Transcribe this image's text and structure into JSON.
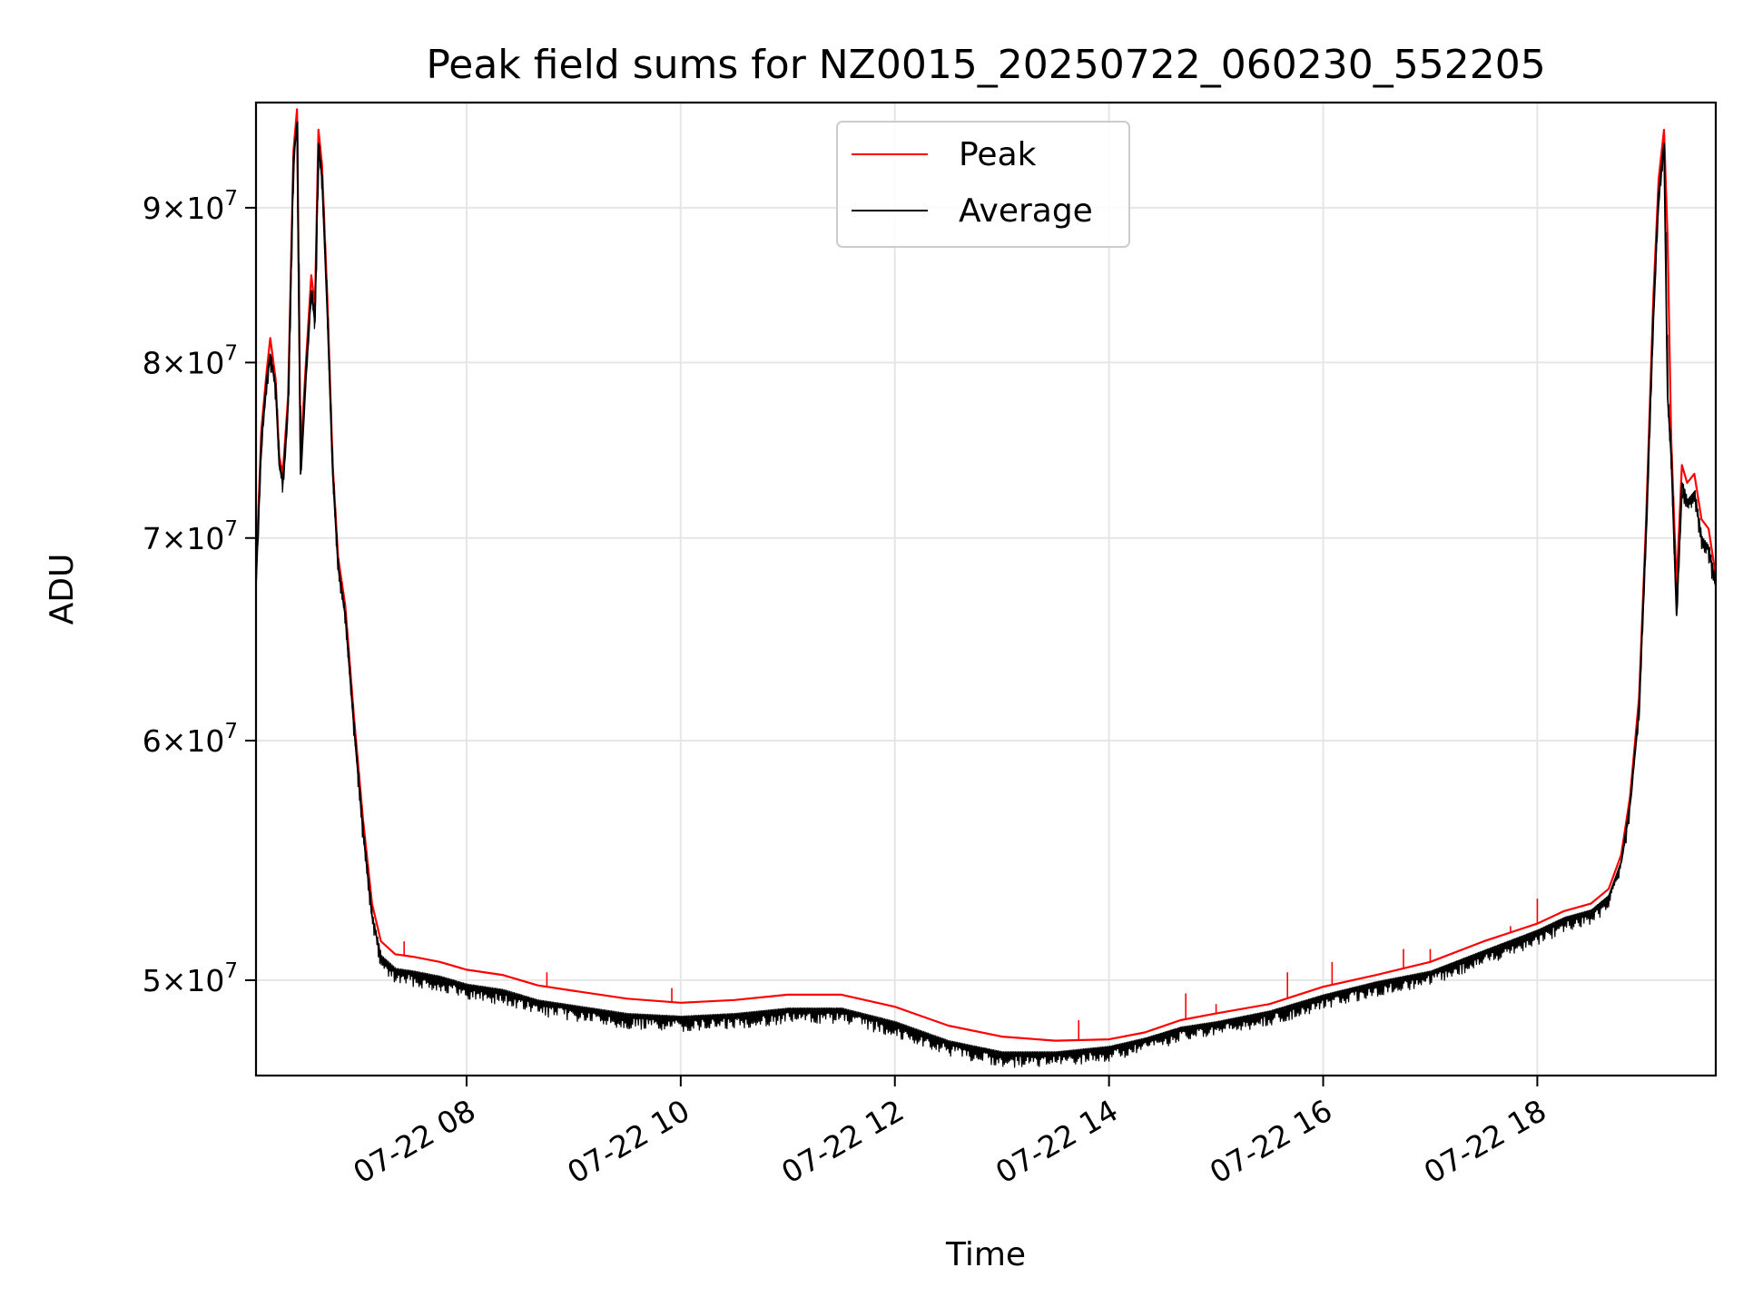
{
  "chart_data": {
    "type": "line",
    "title": "Peak field sums for NZ0015_20250722_060230_552205",
    "xlabel": "Time",
    "ylabel": "ADU",
    "yscale": "log",
    "grid": true,
    "legend_position": "upper-center",
    "xlim": [
      "2025-07-22 06:02",
      "2025-07-22 19:40"
    ],
    "ylim": [
      46500000,
      97500000
    ],
    "x_ticks": [
      {
        "value": "2025-07-22 08:00",
        "label": "07-22 08"
      },
      {
        "value": "2025-07-22 10:00",
        "label": "07-22 10"
      },
      {
        "value": "2025-07-22 12:00",
        "label": "07-22 12"
      },
      {
        "value": "2025-07-22 14:00",
        "label": "07-22 14"
      },
      {
        "value": "2025-07-22 16:00",
        "label": "07-22 16"
      },
      {
        "value": "2025-07-22 18:00",
        "label": "07-22 18"
      }
    ],
    "y_ticks": [
      {
        "value": 50000000,
        "label": "5×10⁷",
        "mantissa": "5",
        "exponent": "7"
      },
      {
        "value": 60000000,
        "label": "6×10⁷",
        "mantissa": "6",
        "exponent": "7"
      },
      {
        "value": 70000000,
        "label": "7×10⁷",
        "mantissa": "7",
        "exponent": "7"
      },
      {
        "value": 80000000,
        "label": "8×10⁷",
        "mantissa": "8",
        "exponent": "7"
      },
      {
        "value": 90000000,
        "label": "9×10⁷",
        "mantissa": "9",
        "exponent": "7"
      }
    ],
    "series": [
      {
        "name": "Peak",
        "color": "#ff0000",
        "points": [
          [
            "2025-07-22 06:02",
            68000000
          ],
          [
            "2025-07-22 06:05",
            76000000
          ],
          [
            "2025-07-22 06:08",
            79500000
          ],
          [
            "2025-07-22 06:10",
            81500000
          ],
          [
            "2025-07-22 06:13",
            79000000
          ],
          [
            "2025-07-22 06:15",
            74500000
          ],
          [
            "2025-07-22 06:17",
            73500000
          ],
          [
            "2025-07-22 06:20",
            78000000
          ],
          [
            "2025-07-22 06:23",
            94000000
          ],
          [
            "2025-07-22 06:25",
            97000000
          ],
          [
            "2025-07-22 06:27",
            74500000
          ],
          [
            "2025-07-22 06:30",
            80000000
          ],
          [
            "2025-07-22 06:33",
            85500000
          ],
          [
            "2025-07-22 06:35",
            83500000
          ],
          [
            "2025-07-22 06:37",
            95500000
          ],
          [
            "2025-07-22 06:39",
            93000000
          ],
          [
            "2025-07-22 06:42",
            84000000
          ],
          [
            "2025-07-22 06:45",
            74000000
          ],
          [
            "2025-07-22 06:48",
            69000000
          ],
          [
            "2025-07-22 06:52",
            66500000
          ],
          [
            "2025-07-22 06:57",
            61000000
          ],
          [
            "2025-07-22 07:02",
            56500000
          ],
          [
            "2025-07-22 07:07",
            53000000
          ],
          [
            "2025-07-22 07:12",
            51500000
          ],
          [
            "2025-07-22 07:20",
            51000000
          ],
          [
            "2025-07-22 07:30",
            50900000
          ],
          [
            "2025-07-22 07:45",
            50700000
          ],
          [
            "2025-07-22 08:00",
            50400000
          ],
          [
            "2025-07-22 08:20",
            50200000
          ],
          [
            "2025-07-22 08:40",
            49800000
          ],
          [
            "2025-07-22 09:00",
            49600000
          ],
          [
            "2025-07-22 09:30",
            49300000
          ],
          [
            "2025-07-22 10:00",
            49150000
          ],
          [
            "2025-07-22 10:30",
            49250000
          ],
          [
            "2025-07-22 11:00",
            49450000
          ],
          [
            "2025-07-22 11:30",
            49450000
          ],
          [
            "2025-07-22 12:00",
            49000000
          ],
          [
            "2025-07-22 12:30",
            48300000
          ],
          [
            "2025-07-22 13:00",
            47900000
          ],
          [
            "2025-07-22 13:30",
            47750000
          ],
          [
            "2025-07-22 14:00",
            47800000
          ],
          [
            "2025-07-22 14:20",
            48050000
          ],
          [
            "2025-07-22 14:40",
            48500000
          ],
          [
            "2025-07-22 15:00",
            48750000
          ],
          [
            "2025-07-22 15:30",
            49100000
          ],
          [
            "2025-07-22 16:00",
            49750000
          ],
          [
            "2025-07-22 16:30",
            50200000
          ],
          [
            "2025-07-22 17:00",
            50700000
          ],
          [
            "2025-07-22 17:30",
            51500000
          ],
          [
            "2025-07-22 18:00",
            52200000
          ],
          [
            "2025-07-22 18:15",
            52700000
          ],
          [
            "2025-07-22 18:30",
            53000000
          ],
          [
            "2025-07-22 18:40",
            53600000
          ],
          [
            "2025-07-22 18:47",
            55000000
          ],
          [
            "2025-07-22 18:52",
            57500000
          ],
          [
            "2025-07-22 18:57",
            62000000
          ],
          [
            "2025-07-22 19:01",
            71000000
          ],
          [
            "2025-07-22 19:05",
            84000000
          ],
          [
            "2025-07-22 19:08",
            92000000
          ],
          [
            "2025-07-22 19:11",
            95500000
          ],
          [
            "2025-07-22 19:13",
            88000000
          ],
          [
            "2025-07-22 19:15",
            75500000
          ],
          [
            "2025-07-22 19:18",
            67500000
          ],
          [
            "2025-07-22 19:21",
            74000000
          ],
          [
            "2025-07-22 19:24",
            73000000
          ],
          [
            "2025-07-22 19:28",
            73500000
          ],
          [
            "2025-07-22 19:32",
            71000000
          ],
          [
            "2025-07-22 19:36",
            70500000
          ],
          [
            "2025-07-22 19:40",
            68000000
          ]
        ],
        "spikes": [
          [
            "2025-07-22 07:25",
            51500000
          ],
          [
            "2025-07-22 08:45",
            50300000
          ],
          [
            "2025-07-22 09:55",
            49700000
          ],
          [
            "2025-07-22 13:43",
            48500000
          ],
          [
            "2025-07-22 14:43",
            49500000
          ],
          [
            "2025-07-22 15:00",
            49100000
          ],
          [
            "2025-07-22 15:40",
            50300000
          ],
          [
            "2025-07-22 16:05",
            50700000
          ],
          [
            "2025-07-22 16:45",
            51200000
          ],
          [
            "2025-07-22 17:00",
            51200000
          ],
          [
            "2025-07-22 17:45",
            52100000
          ],
          [
            "2025-07-22 18:00",
            53200000
          ]
        ]
      },
      {
        "name": "Average",
        "color": "#000000",
        "points": [
          [
            "2025-07-22 06:02",
            67500000
          ],
          [
            "2025-07-22 06:05",
            75500000
          ],
          [
            "2025-07-22 06:08",
            79000000
          ],
          [
            "2025-07-22 06:10",
            80500000
          ],
          [
            "2025-07-22 06:13",
            78500000
          ],
          [
            "2025-07-22 06:15",
            74000000
          ],
          [
            "2025-07-22 06:17",
            73000000
          ],
          [
            "2025-07-22 06:20",
            77500000
          ],
          [
            "2025-07-22 06:23",
            93500000
          ],
          [
            "2025-07-22 06:25",
            96000000
          ],
          [
            "2025-07-22 06:27",
            73500000
          ],
          [
            "2025-07-22 06:30",
            79500000
          ],
          [
            "2025-07-22 06:33",
            84500000
          ],
          [
            "2025-07-22 06:35",
            82500000
          ],
          [
            "2025-07-22 06:37",
            94500000
          ],
          [
            "2025-07-22 06:39",
            92000000
          ],
          [
            "2025-07-22 06:42",
            83000000
          ],
          [
            "2025-07-22 06:45",
            73500000
          ],
          [
            "2025-07-22 06:48",
            68500000
          ],
          [
            "2025-07-22 06:52",
            66000000
          ],
          [
            "2025-07-22 06:57",
            60500000
          ],
          [
            "2025-07-22 07:02",
            56000000
          ],
          [
            "2025-07-22 07:07",
            52500000
          ],
          [
            "2025-07-22 07:12",
            50900000
          ],
          [
            "2025-07-22 07:20",
            50400000
          ],
          [
            "2025-07-22 07:30",
            50300000
          ],
          [
            "2025-07-22 07:45",
            50100000
          ],
          [
            "2025-07-22 08:00",
            49800000
          ],
          [
            "2025-07-22 08:20",
            49600000
          ],
          [
            "2025-07-22 08:40",
            49200000
          ],
          [
            "2025-07-22 09:00",
            49000000
          ],
          [
            "2025-07-22 09:30",
            48700000
          ],
          [
            "2025-07-22 10:00",
            48600000
          ],
          [
            "2025-07-22 10:30",
            48700000
          ],
          [
            "2025-07-22 11:00",
            48900000
          ],
          [
            "2025-07-22 11:30",
            48900000
          ],
          [
            "2025-07-22 12:00",
            48400000
          ],
          [
            "2025-07-22 12:30",
            47700000
          ],
          [
            "2025-07-22 13:00",
            47300000
          ],
          [
            "2025-07-22 13:30",
            47300000
          ],
          [
            "2025-07-22 14:00",
            47500000
          ],
          [
            "2025-07-22 14:20",
            47800000
          ],
          [
            "2025-07-22 14:40",
            48200000
          ],
          [
            "2025-07-22 15:00",
            48400000
          ],
          [
            "2025-07-22 15:30",
            48800000
          ],
          [
            "2025-07-22 16:00",
            49400000
          ],
          [
            "2025-07-22 16:30",
            49900000
          ],
          [
            "2025-07-22 17:00",
            50300000
          ],
          [
            "2025-07-22 17:30",
            51100000
          ],
          [
            "2025-07-22 18:00",
            51900000
          ],
          [
            "2025-07-22 18:15",
            52400000
          ],
          [
            "2025-07-22 18:30",
            52700000
          ],
          [
            "2025-07-22 18:40",
            53300000
          ],
          [
            "2025-07-22 18:47",
            54700000
          ],
          [
            "2025-07-22 18:52",
            57200000
          ],
          [
            "2025-07-22 18:57",
            61500000
          ],
          [
            "2025-07-22 19:01",
            70500000
          ],
          [
            "2025-07-22 19:05",
            83000000
          ],
          [
            "2025-07-22 19:08",
            91000000
          ],
          [
            "2025-07-22 19:11",
            94500000
          ],
          [
            "2025-07-22 19:13",
            78000000
          ],
          [
            "2025-07-22 19:15",
            74500000
          ],
          [
            "2025-07-22 19:18",
            66000000
          ],
          [
            "2025-07-22 19:21",
            73000000
          ],
          [
            "2025-07-22 19:24",
            72000000
          ],
          [
            "2025-07-22 19:28",
            72500000
          ],
          [
            "2025-07-22 19:32",
            70000000
          ],
          [
            "2025-07-22 19:36",
            69500000
          ],
          [
            "2025-07-22 19:40",
            67500000
          ]
        ]
      }
    ]
  }
}
